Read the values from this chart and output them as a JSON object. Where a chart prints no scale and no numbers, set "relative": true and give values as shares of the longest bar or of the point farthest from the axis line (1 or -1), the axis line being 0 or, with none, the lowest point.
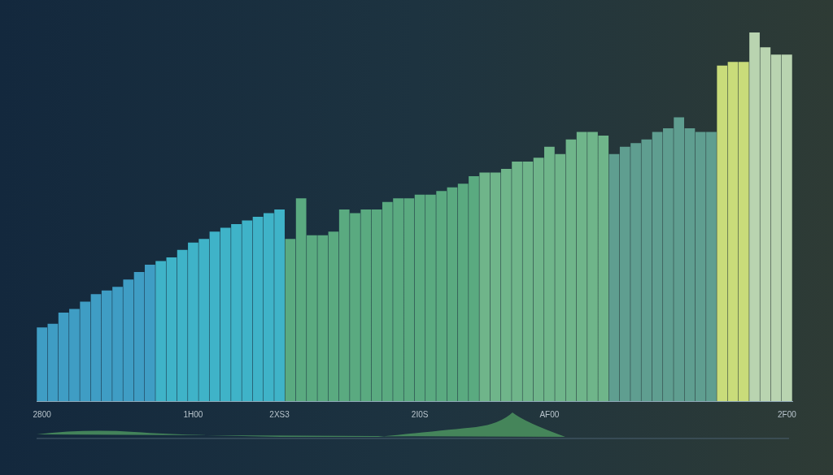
{
  "chart_data": {
    "type": "bar",
    "relative": true,
    "categories": [
      "2800",
      null,
      null,
      null,
      null,
      null,
      null,
      null,
      null,
      null,
      null,
      null,
      null,
      null,
      "1H00",
      null,
      null,
      null,
      null,
      null,
      null,
      null,
      "2XS3",
      null,
      null,
      null,
      null,
      null,
      null,
      null,
      null,
      null,
      null,
      null,
      null,
      "2I0S",
      null,
      null,
      null,
      null,
      null,
      null,
      null,
      null,
      null,
      null,
      null,
      "AF00",
      null,
      null,
      null,
      null,
      null,
      null,
      null,
      null,
      null,
      null,
      null,
      null,
      null,
      null,
      null,
      null,
      null,
      null,
      null,
      null,
      null,
      "2F00"
    ],
    "values": [
      0.2,
      0.21,
      0.24,
      0.25,
      0.27,
      0.29,
      0.3,
      0.31,
      0.33,
      0.35,
      0.37,
      0.38,
      0.39,
      0.41,
      0.43,
      0.44,
      0.46,
      0.47,
      0.48,
      0.49,
      0.5,
      0.51,
      0.52,
      0.44,
      0.55,
      0.45,
      0.45,
      0.46,
      0.52,
      0.51,
      0.52,
      0.52,
      0.54,
      0.55,
      0.55,
      0.56,
      0.56,
      0.57,
      0.58,
      0.59,
      0.61,
      0.62,
      0.62,
      0.63,
      0.65,
      0.65,
      0.66,
      0.69,
      0.67,
      0.71,
      0.73,
      0.73,
      0.72,
      0.67,
      0.69,
      0.7,
      0.71,
      0.73,
      0.74,
      0.77,
      0.74,
      0.73,
      0.73,
      0.91,
      0.92,
      0.92,
      1,
      0.96,
      0.94,
      0.94
    ],
    "colors": [
      "#3f9dc4",
      "#3f9dc4",
      "#3f9dc4",
      "#3f9dc4",
      "#3f9dc4",
      "#3f9dc4",
      "#3f9dc4",
      "#3f9dc4",
      "#3f9dc4",
      "#3f9dc4",
      "#3f9dc4",
      "#3fb3c8",
      "#3fb3c8",
      "#3fb3c8",
      "#3fb3c8",
      "#3fb3c8",
      "#3fb3c8",
      "#3fb3c8",
      "#3fb3c8",
      "#3fb3c8",
      "#3fb3c8",
      "#3fb3c8",
      "#3fb3c8",
      "#5aaa80",
      "#5aaa80",
      "#5aaa80",
      "#5aaa80",
      "#5aaa80",
      "#5aaa80",
      "#5aaa80",
      "#5aaa80",
      "#5aaa80",
      "#5aaa80",
      "#5aaa80",
      "#5aaa80",
      "#5aaa80",
      "#5aaa80",
      "#5aaa80",
      "#5aaa80",
      "#5aaa80",
      "#5aaa80",
      "#6fb58a",
      "#6fb58a",
      "#6fb58a",
      "#6fb58a",
      "#6fb58a",
      "#6fb58a",
      "#6fb58a",
      "#6fb58a",
      "#6fb58a",
      "#6fb58a",
      "#6fb58a",
      "#6fb58a",
      "#5f9e90",
      "#5f9e90",
      "#5f9e90",
      "#5f9e90",
      "#5f9e90",
      "#5f9e90",
      "#5f9e90",
      "#5f9e90",
      "#5f9e90",
      "#5f9e90",
      "#c9dc7a",
      "#c9dc7a",
      "#c9dc7a",
      "#b9d4b0",
      "#b9d4b0",
      "#b9d4b0",
      "#b9d4b0"
    ]
  }
}
